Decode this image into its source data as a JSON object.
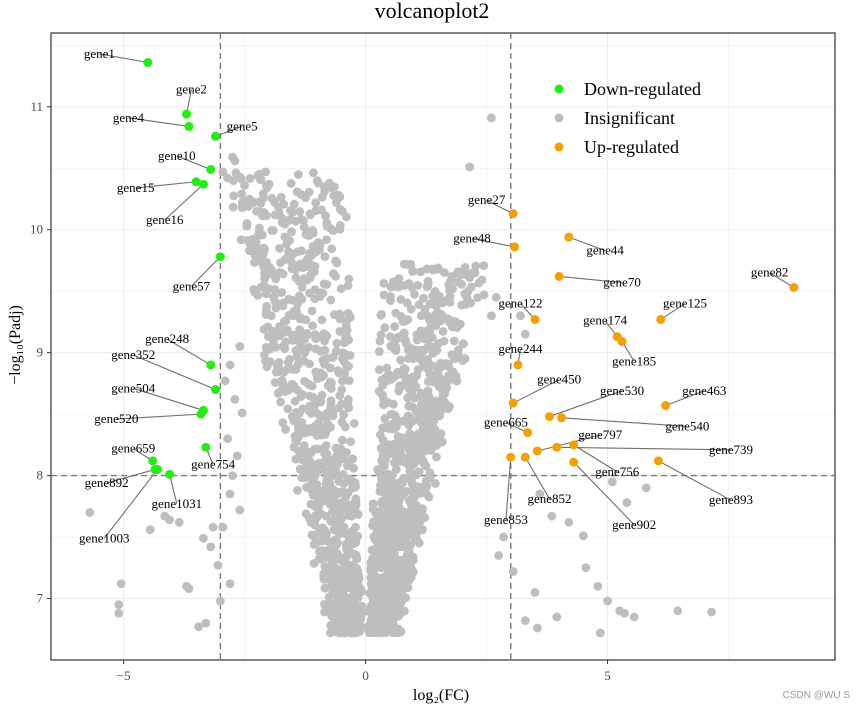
{
  "chart_data": {
    "type": "scatter",
    "title": "volcanoplot2",
    "xlabel": "log₂(FC)",
    "ylabel": "−log₁₀(Padj)",
    "xlim": [
      -6.5,
      9.7
    ],
    "ylim": [
      6.5,
      11.6
    ],
    "xticks": [
      -5,
      0,
      5
    ],
    "yticks": [
      7,
      8,
      9,
      10,
      11
    ],
    "thresholds": {
      "x": [
        -3,
        3
      ],
      "y": 8
    },
    "colors": {
      "down": "#22ee11",
      "insig": "#bebebe",
      "up": "#f5a000"
    },
    "legend": [
      {
        "key": "down",
        "label": "Down-regulated"
      },
      {
        "key": "insig",
        "label": "Insignificant"
      },
      {
        "key": "up",
        "label": "Up-regulated"
      }
    ],
    "genes": [
      {
        "name": "gene1",
        "x": -4.5,
        "y": 11.36,
        "group": "down",
        "lx": -5.5,
        "ly": 11.43
      },
      {
        "name": "gene2",
        "x": -3.7,
        "y": 10.94,
        "group": "down",
        "lx": -3.6,
        "ly": 11.14
      },
      {
        "name": "gene4",
        "x": -3.65,
        "y": 10.84,
        "group": "down",
        "lx": -4.9,
        "ly": 10.91
      },
      {
        "name": "gene5",
        "x": -3.1,
        "y": 10.76,
        "group": "down",
        "lx": -2.55,
        "ly": 10.84
      },
      {
        "name": "gene10",
        "x": -3.2,
        "y": 10.49,
        "group": "down",
        "lx": -3.9,
        "ly": 10.6
      },
      {
        "name": "gene15",
        "x": -3.5,
        "y": 10.39,
        "group": "down",
        "lx": -4.75,
        "ly": 10.34
      },
      {
        "name": "gene16",
        "x": -3.35,
        "y": 10.37,
        "group": "down",
        "lx": -4.15,
        "ly": 10.08
      },
      {
        "name": "gene57",
        "x": -3.0,
        "y": 9.78,
        "group": "down",
        "lx": -3.6,
        "ly": 9.54
      },
      {
        "name": "gene248",
        "x": -3.2,
        "y": 8.9,
        "group": "down",
        "lx": -4.1,
        "ly": 9.11
      },
      {
        "name": "gene352",
        "x": -3.1,
        "y": 8.7,
        "group": "down",
        "lx": -4.8,
        "ly": 8.98
      },
      {
        "name": "gene504",
        "x": -3.35,
        "y": 8.53,
        "group": "down",
        "lx": -4.8,
        "ly": 8.71
      },
      {
        "name": "gene520",
        "x": -3.4,
        "y": 8.5,
        "group": "down",
        "lx": -5.15,
        "ly": 8.46
      },
      {
        "name": "gene659",
        "x": -4.4,
        "y": 8.12,
        "group": "down",
        "lx": -4.8,
        "ly": 8.22
      },
      {
        "name": "gene754",
        "x": -3.3,
        "y": 8.23,
        "group": "down",
        "lx": -3.15,
        "ly": 8.09
      },
      {
        "name": "gene892",
        "x": -4.35,
        "y": 8.05,
        "group": "down",
        "lx": -5.35,
        "ly": 7.94
      },
      {
        "name": "gene1031",
        "x": -4.05,
        "y": 8.01,
        "group": "down",
        "lx": -3.9,
        "ly": 7.77
      },
      {
        "name": "gene1003",
        "x": -4.3,
        "y": 8.05,
        "group": "down",
        "lx": -5.4,
        "ly": 7.49
      },
      {
        "name": "gene27",
        "x": 3.05,
        "y": 10.13,
        "group": "up",
        "lx": 2.5,
        "ly": 10.24
      },
      {
        "name": "gene48",
        "x": 3.08,
        "y": 9.86,
        "group": "up",
        "lx": 2.2,
        "ly": 9.93
      },
      {
        "name": "gene44",
        "x": 4.2,
        "y": 9.94,
        "group": "up",
        "lx": 4.95,
        "ly": 9.83
      },
      {
        "name": "gene70",
        "x": 4.0,
        "y": 9.62,
        "group": "up",
        "lx": 5.3,
        "ly": 9.57
      },
      {
        "name": "gene82",
        "x": 8.85,
        "y": 9.53,
        "group": "up",
        "lx": 8.35,
        "ly": 9.65
      },
      {
        "name": "gene122",
        "x": 3.5,
        "y": 9.27,
        "group": "up",
        "lx": 3.2,
        "ly": 9.4
      },
      {
        "name": "gene125",
        "x": 6.1,
        "y": 9.27,
        "group": "up",
        "lx": 6.6,
        "ly": 9.4
      },
      {
        "name": "gene174",
        "x": 5.2,
        "y": 9.13,
        "group": "up",
        "lx": 4.95,
        "ly": 9.26
      },
      {
        "name": "gene185",
        "x": 5.3,
        "y": 9.09,
        "group": "up",
        "lx": 5.55,
        "ly": 8.93
      },
      {
        "name": "gene244",
        "x": 3.15,
        "y": 8.9,
        "group": "up",
        "lx": 3.2,
        "ly": 9.03
      },
      {
        "name": "gene450",
        "x": 3.05,
        "y": 8.59,
        "group": "up",
        "lx": 4.0,
        "ly": 8.78
      },
      {
        "name": "gene530",
        "x": 3.8,
        "y": 8.48,
        "group": "up",
        "lx": 5.3,
        "ly": 8.69
      },
      {
        "name": "gene463",
        "x": 6.2,
        "y": 8.57,
        "group": "up",
        "lx": 7.0,
        "ly": 8.69
      },
      {
        "name": "gene665",
        "x": 3.35,
        "y": 8.35,
        "group": "up",
        "lx": 2.9,
        "ly": 8.43
      },
      {
        "name": "gene540",
        "x": 4.05,
        "y": 8.47,
        "group": "up",
        "lx": 6.65,
        "ly": 8.4
      },
      {
        "name": "gene797",
        "x": 3.55,
        "y": 8.2,
        "group": "up",
        "lx": 4.85,
        "ly": 8.33
      },
      {
        "name": "gene739",
        "x": 3.95,
        "y": 8.23,
        "group": "up",
        "lx": 7.55,
        "ly": 8.21
      },
      {
        "name": "gene756",
        "x": 4.3,
        "y": 8.25,
        "group": "up",
        "lx": 5.2,
        "ly": 8.03
      },
      {
        "name": "gene893",
        "x": 6.05,
        "y": 8.12,
        "group": "up",
        "lx": 7.55,
        "ly": 7.8
      },
      {
        "name": "gene852",
        "x": 3.3,
        "y": 8.15,
        "group": "up",
        "lx": 3.8,
        "ly": 7.81
      },
      {
        "name": "gene902",
        "x": 4.3,
        "y": 8.11,
        "group": "up",
        "lx": 5.55,
        "ly": 7.6
      },
      {
        "name": "gene853",
        "x": 3.0,
        "y": 8.15,
        "group": "up",
        "lx": 2.9,
        "ly": 7.64
      }
    ],
    "insignificant": [
      [
        2.6,
        10.91
      ],
      [
        2.15,
        10.51
      ],
      [
        -2.75,
        10.59
      ],
      [
        -2.7,
        10.56
      ],
      [
        -2.95,
        10.47
      ],
      [
        -2.6,
        10.43
      ],
      [
        -2.85,
        10.42
      ],
      [
        -2.5,
        10.36
      ],
      [
        -2.4,
        10.25
      ],
      [
        -2.55,
        10.18
      ],
      [
        -2.25,
        10.15
      ],
      [
        -2.45,
        10.05
      ],
      [
        -2.2,
        9.98
      ],
      [
        -2.3,
        9.92
      ],
      [
        -2.1,
        9.85
      ],
      [
        -2.2,
        9.75
      ],
      [
        -2.0,
        9.68
      ],
      [
        -2.1,
        9.55
      ],
      [
        -1.9,
        9.45
      ],
      [
        -1.95,
        9.3
      ],
      [
        -1.8,
        9.18
      ],
      [
        -1.7,
        9.05
      ],
      [
        -1.6,
        8.92
      ],
      [
        1.4,
        9.67
      ],
      [
        1.15,
        9.3
      ],
      [
        0.8,
        9.72
      ],
      [
        0.95,
        8.75
      ],
      [
        1.6,
        8.65
      ],
      [
        1.8,
        9.52
      ],
      [
        2.05,
        9.48
      ],
      [
        2.45,
        9.47
      ],
      [
        2.7,
        9.45
      ],
      [
        2.6,
        9.3
      ],
      [
        1.45,
        9.22
      ],
      [
        1.3,
        9.11
      ],
      [
        3.2,
        9.3
      ],
      [
        3.3,
        9.15
      ],
      [
        -2.6,
        9.05
      ],
      [
        -2.8,
        8.9
      ],
      [
        -2.9,
        8.77
      ],
      [
        -2.7,
        8.62
      ],
      [
        -2.55,
        8.51
      ],
      [
        -2.85,
        8.3
      ],
      [
        -2.65,
        8.16
      ],
      [
        -2.75,
        8.0
      ],
      [
        -2.8,
        7.85
      ],
      [
        -2.6,
        7.72
      ],
      [
        -2.95,
        7.58
      ],
      [
        -3.2,
        7.42
      ],
      [
        -3.05,
        7.27
      ],
      [
        -2.8,
        7.12
      ],
      [
        -3.0,
        6.98
      ],
      [
        -3.3,
        6.8
      ],
      [
        -3.45,
        6.77
      ],
      [
        -3.7,
        7.1
      ],
      [
        -3.65,
        7.08
      ],
      [
        -4.15,
        7.67
      ],
      [
        -4.05,
        7.64
      ],
      [
        -3.85,
        7.62
      ],
      [
        -4.45,
        7.56
      ],
      [
        -5.7,
        7.7
      ],
      [
        -5.05,
        7.12
      ],
      [
        -5.1,
        6.95
      ],
      [
        -5.1,
        6.88
      ],
      [
        -3.15,
        7.58
      ],
      [
        -3.35,
        7.49
      ],
      [
        3.6,
        7.85
      ],
      [
        3.85,
        7.67
      ],
      [
        4.2,
        7.62
      ],
      [
        4.5,
        7.51
      ],
      [
        4.55,
        7.25
      ],
      [
        4.8,
        7.1
      ],
      [
        5.1,
        7.95
      ],
      [
        5.4,
        7.78
      ],
      [
        5.8,
        7.9
      ],
      [
        5.25,
        6.9
      ],
      [
        5.35,
        6.88
      ],
      [
        5.55,
        6.85
      ],
      [
        6.45,
        6.9
      ],
      [
        7.15,
        6.89
      ],
      [
        4.85,
        6.72
      ],
      [
        5.0,
        6.98
      ],
      [
        3.5,
        7.05
      ],
      [
        3.3,
        6.82
      ],
      [
        3.55,
        6.76
      ],
      [
        3.95,
        6.85
      ],
      [
        2.85,
        7.5
      ],
      [
        2.75,
        7.35
      ],
      [
        3.05,
        7.22
      ]
    ],
    "watermark": "CSDN @WU S"
  }
}
